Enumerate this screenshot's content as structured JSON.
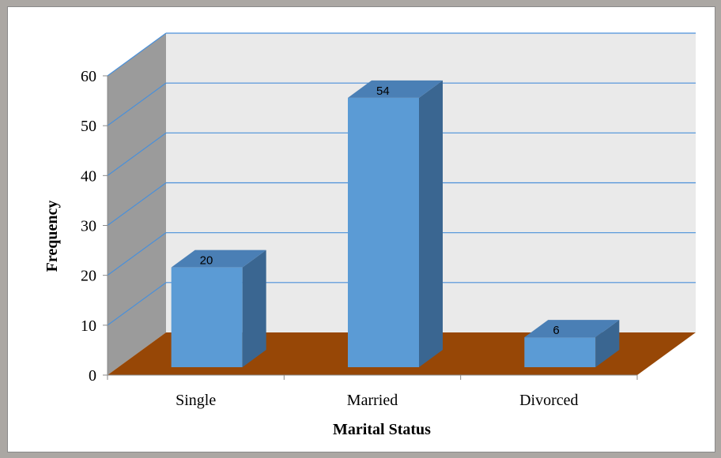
{
  "chart_data": {
    "type": "bar",
    "title": "",
    "xlabel": "Marital Status",
    "ylabel": "Frequency",
    "categories": [
      "Single",
      "Married",
      "Divorced"
    ],
    "values": [
      20,
      54,
      6
    ],
    "data_labels": [
      "20",
      "54",
      "6"
    ],
    "ylim": [
      0,
      60
    ],
    "y_ticks": [
      "0",
      "10",
      "20",
      "30",
      "40",
      "50",
      "60"
    ],
    "grid": true,
    "legend": "none",
    "three_d": true,
    "colors": {
      "bar_front": "#5b9bd5",
      "bar_top": "#4a7fb5",
      "bar_side": "#3a6691",
      "floor": "#974706",
      "back_wall": "#eaeaea",
      "side_wall": "#9b9b9b",
      "gridline": "#4a90d9",
      "page_background": "#aba7a3"
    }
  }
}
